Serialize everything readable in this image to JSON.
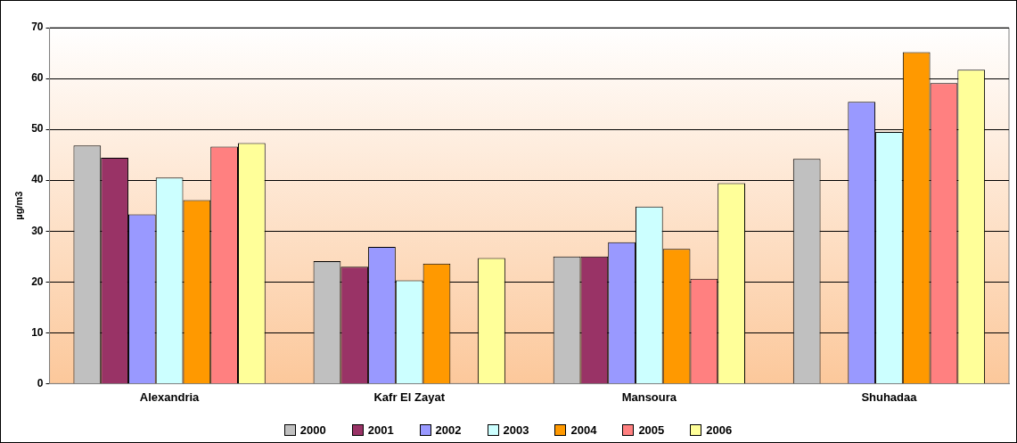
{
  "chart_data": {
    "type": "bar",
    "ylabel": "µg/m3",
    "categories": [
      "Alexandria",
      "Kafr El Zayat",
      "Mansoura",
      "Shuhadaa"
    ],
    "series": [
      {
        "name": "2000",
        "color": "#c0c0c0",
        "values": [
          46.8,
          24.1,
          25.0,
          44.2
        ]
      },
      {
        "name": "2001",
        "color": "#993366",
        "values": [
          44.4,
          23.0,
          25.0,
          null
        ]
      },
      {
        "name": "2002",
        "color": "#9999ff",
        "values": [
          33.3,
          26.9,
          27.8,
          55.4
        ]
      },
      {
        "name": "2003",
        "color": "#ccffff",
        "values": [
          40.5,
          20.3,
          34.8,
          49.5
        ]
      },
      {
        "name": "2004",
        "color": "#ff9900",
        "values": [
          36.1,
          23.6,
          26.5,
          65.2
        ]
      },
      {
        "name": "2005",
        "color": "#ff8080",
        "values": [
          46.6,
          null,
          20.6,
          59.1
        ]
      },
      {
        "name": "2006",
        "color": "#ffff99",
        "values": [
          47.3,
          24.7,
          39.4,
          61.7
        ]
      }
    ],
    "ylim": [
      0,
      70
    ],
    "yticks": [
      0,
      10,
      20,
      30,
      40,
      50,
      60,
      70
    ],
    "grid": "y",
    "legend": "bottom"
  }
}
